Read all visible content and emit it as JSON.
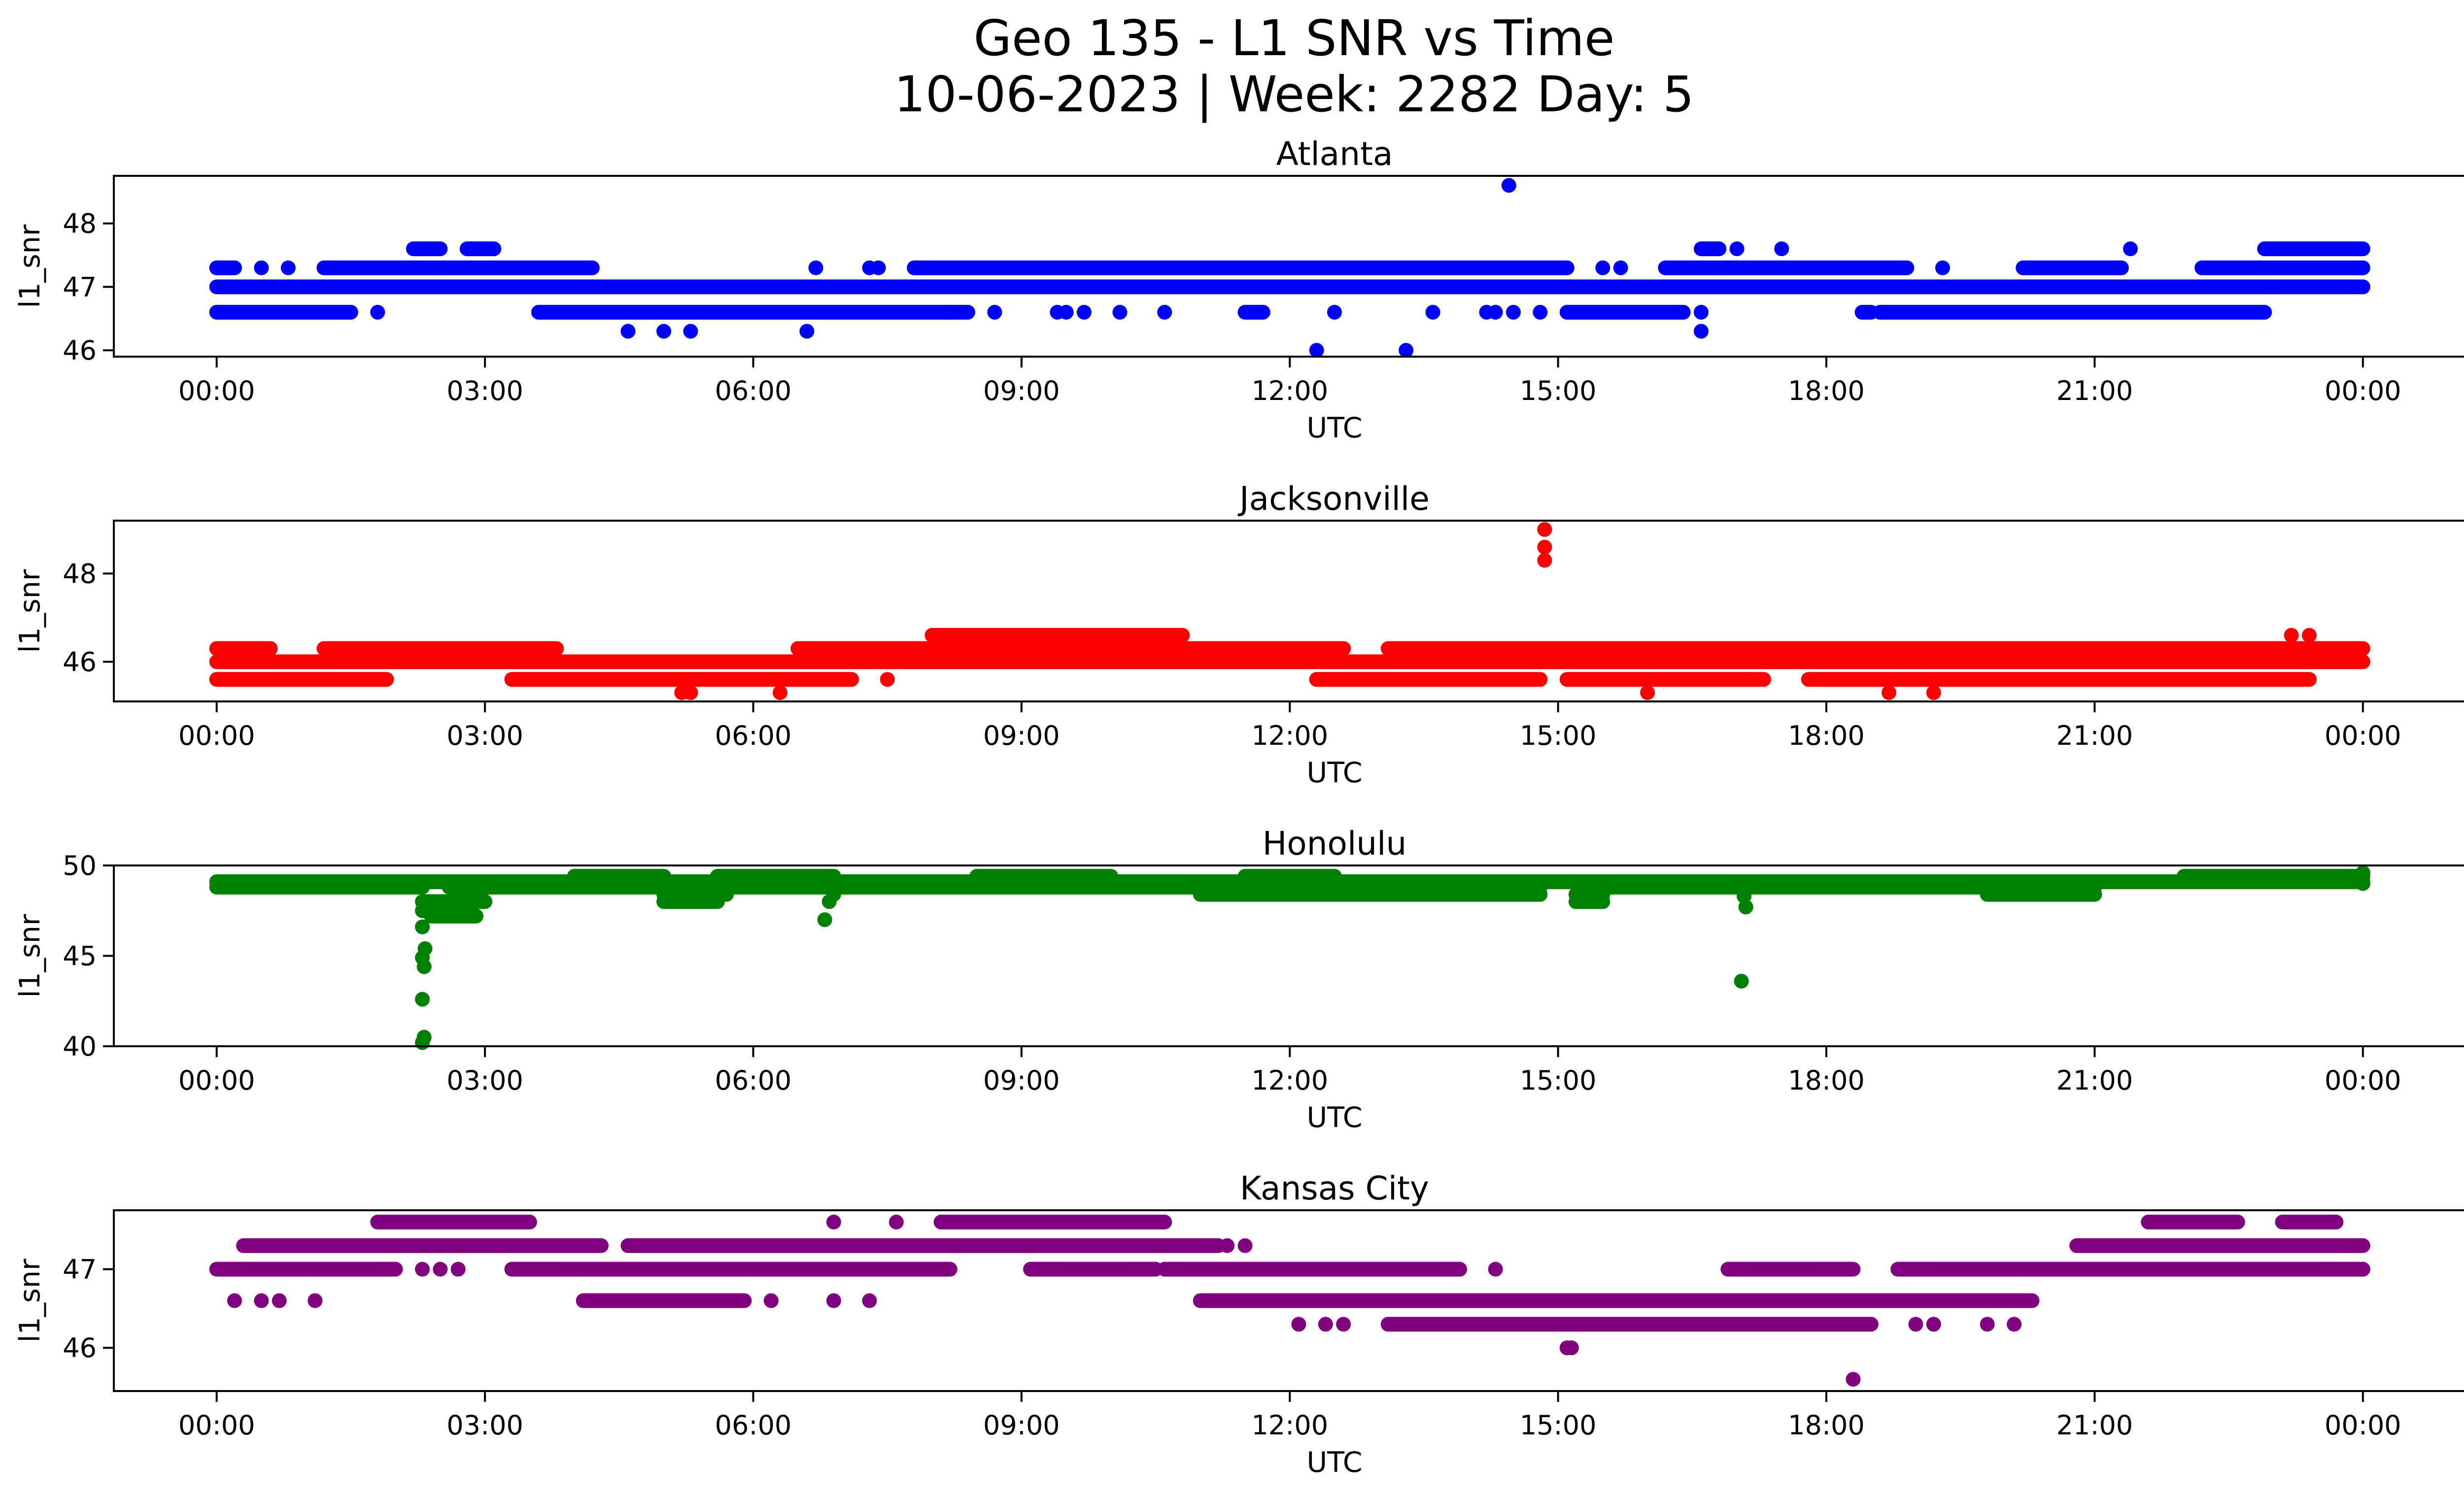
{
  "figure": {
    "title_line1": "Geo 135 - L1 SNR vs Time",
    "title_line2": "10-06-2023 | Week: 2282 Day: 5"
  },
  "chart_data": [
    {
      "type": "scatter",
      "title": "Atlanta",
      "xlabel": "UTC",
      "ylabel": "l1_snr",
      "color": "#0000ff",
      "xlim_hours": [
        -1.15,
        26.15
      ],
      "ylim": [
        45.9,
        48.75
      ],
      "yticks": [
        46,
        47,
        48
      ],
      "xtick_hours": [
        0,
        3,
        6,
        9,
        12,
        15,
        18,
        21,
        24
      ],
      "xtick_labels": [
        "00:00",
        "03:00",
        "06:00",
        "09:00",
        "12:00",
        "15:00",
        "18:00",
        "21:00",
        "00:00"
      ],
      "bands": [
        {
          "y": 47.0,
          "segments": [
            [
              0,
              24
            ]
          ]
        },
        {
          "y": 46.6,
          "segments": [
            [
              0,
              1.5
            ],
            [
              3.6,
              8.2
            ],
            [
              8.2,
              8.4
            ],
            [
              11.5,
              11.7
            ],
            [
              15.1,
              16.4
            ],
            [
              18.4,
              18.5
            ],
            [
              18.6,
              22.9
            ]
          ]
        },
        {
          "y": 47.3,
          "segments": [
            [
              0,
              0.2
            ],
            [
              1.2,
              4.2
            ],
            [
              7.8,
              15.1
            ],
            [
              16.2,
              18.9
            ],
            [
              20.2,
              21.3
            ],
            [
              22.2,
              24
            ]
          ]
        },
        {
          "y": 47.6,
          "segments": [
            [
              2.2,
              2.5
            ],
            [
              2.8,
              3.1
            ],
            [
              16.6,
              16.8
            ],
            [
              22.9,
              24
            ]
          ]
        }
      ],
      "points": [
        {
          "x": 0.5,
          "y": 47.3
        },
        {
          "x": 0.8,
          "y": 47.3
        },
        {
          "x": 1.8,
          "y": 46.6
        },
        {
          "x": 4.6,
          "y": 46.3
        },
        {
          "x": 5.0,
          "y": 46.3
        },
        {
          "x": 5.3,
          "y": 46.3
        },
        {
          "x": 6.6,
          "y": 46.3
        },
        {
          "x": 6.7,
          "y": 47.3
        },
        {
          "x": 7.3,
          "y": 47.3
        },
        {
          "x": 7.4,
          "y": 47.3
        },
        {
          "x": 8.7,
          "y": 46.6
        },
        {
          "x": 9.4,
          "y": 46.6
        },
        {
          "x": 9.5,
          "y": 46.6
        },
        {
          "x": 9.7,
          "y": 46.6
        },
        {
          "x": 10.1,
          "y": 46.6
        },
        {
          "x": 10.6,
          "y": 46.6
        },
        {
          "x": 12.3,
          "y": 46.0
        },
        {
          "x": 12.5,
          "y": 46.6
        },
        {
          "x": 13.3,
          "y": 46.0
        },
        {
          "x": 13.6,
          "y": 46.6
        },
        {
          "x": 14.2,
          "y": 46.6
        },
        {
          "x": 14.3,
          "y": 46.6
        },
        {
          "x": 14.45,
          "y": 48.6
        },
        {
          "x": 14.5,
          "y": 46.6
        },
        {
          "x": 14.8,
          "y": 46.6
        },
        {
          "x": 15.5,
          "y": 47.3
        },
        {
          "x": 15.7,
          "y": 47.3
        },
        {
          "x": 16.6,
          "y": 46.3
        },
        {
          "x": 16.6,
          "y": 46.6
        },
        {
          "x": 17.0,
          "y": 47.6
        },
        {
          "x": 17.5,
          "y": 47.6
        },
        {
          "x": 19.3,
          "y": 47.3
        },
        {
          "x": 21.4,
          "y": 47.6
        },
        {
          "x": 23.0,
          "y": 47.0
        },
        {
          "x": 24.0,
          "y": 47.0
        }
      ]
    },
    {
      "type": "scatter",
      "title": "Jacksonville",
      "xlabel": "UTC",
      "ylabel": "l1_snr",
      "color": "#ff0000",
      "xlim_hours": [
        -1.15,
        26.15
      ],
      "ylim": [
        45.1,
        49.2
      ],
      "yticks": [
        46,
        48
      ],
      "xtick_hours": [
        0,
        3,
        6,
        9,
        12,
        15,
        18,
        21,
        24
      ],
      "xtick_labels": [
        "00:00",
        "03:00",
        "06:00",
        "09:00",
        "12:00",
        "15:00",
        "18:00",
        "21:00",
        "00:00"
      ],
      "bands": [
        {
          "y": 46.0,
          "segments": [
            [
              0,
              24
            ]
          ]
        },
        {
          "y": 45.6,
          "segments": [
            [
              0,
              1.9
            ],
            [
              3.3,
              7.1
            ],
            [
              12.3,
              14.8
            ],
            [
              15.1,
              17.3
            ],
            [
              17.8,
              23.4
            ]
          ]
        },
        {
          "y": 46.3,
          "segments": [
            [
              0,
              0.6
            ],
            [
              1.2,
              3.8
            ],
            [
              6.5,
              12.6
            ],
            [
              13.1,
              24
            ]
          ]
        },
        {
          "y": 46.6,
          "segments": [
            [
              8.0,
              10.8
            ]
          ]
        }
      ],
      "points": [
        {
          "x": 5.2,
          "y": 45.3
        },
        {
          "x": 5.3,
          "y": 45.3
        },
        {
          "x": 6.3,
          "y": 45.3
        },
        {
          "x": 7.5,
          "y": 45.6
        },
        {
          "x": 12.3,
          "y": 45.6
        },
        {
          "x": 14.85,
          "y": 49.0
        },
        {
          "x": 14.85,
          "y": 48.6
        },
        {
          "x": 14.85,
          "y": 48.3
        },
        {
          "x": 16.0,
          "y": 45.3
        },
        {
          "x": 17.1,
          "y": 45.6
        },
        {
          "x": 18.7,
          "y": 45.3
        },
        {
          "x": 19.2,
          "y": 45.3
        },
        {
          "x": 23.2,
          "y": 46.6
        },
        {
          "x": 23.4,
          "y": 46.6
        }
      ]
    },
    {
      "type": "scatter",
      "title": "Honolulu",
      "xlabel": "UTC",
      "ylabel": "l1_snr",
      "color": "#008000",
      "xlim_hours": [
        -1.15,
        26.15
      ],
      "ylim": [
        40.0,
        50.0
      ],
      "yticks": [
        40,
        45,
        50
      ],
      "xtick_hours": [
        0,
        3,
        6,
        9,
        12,
        15,
        18,
        21,
        24
      ],
      "xtick_labels": [
        "00:00",
        "03:00",
        "06:00",
        "09:00",
        "12:00",
        "15:00",
        "18:00",
        "21:00",
        "00:00"
      ],
      "bands": [
        {
          "y": 49.1,
          "segments": [
            [
              0,
              24
            ]
          ]
        },
        {
          "y": 48.8,
          "segments": [
            [
              0,
              2.3
            ],
            [
              2.6,
              5.2
            ],
            [
              5.8,
              11.0
            ],
            [
              11.0,
              14.8
            ],
            [
              15.3,
              19.8
            ],
            [
              20.0,
              21.0
            ]
          ]
        },
        {
          "y": 49.4,
          "segments": [
            [
              4.0,
              5.0
            ],
            [
              5.6,
              6.9
            ],
            [
              8.5,
              10.0
            ],
            [
              11.5,
              12.5
            ],
            [
              22.0,
              24
            ]
          ]
        },
        {
          "y": 48.4,
          "segments": [
            [
              5.0,
              5.7
            ],
            [
              11.0,
              14.8
            ],
            [
              15.2,
              15.5
            ],
            [
              19.8,
              21.0
            ]
          ]
        },
        {
          "y": 48.0,
          "segments": [
            [
              2.3,
              3.0
            ],
            [
              5.0,
              5.6
            ],
            [
              15.2,
              15.5
            ]
          ]
        },
        {
          "y": 47.5,
          "segments": [
            [
              2.3,
              2.7
            ]
          ]
        },
        {
          "y": 47.2,
          "segments": [
            [
              2.4,
              2.9
            ]
          ]
        }
      ],
      "points": [
        {
          "x": 2.3,
          "y": 40.2
        },
        {
          "x": 2.32,
          "y": 40.5
        },
        {
          "x": 2.3,
          "y": 42.6
        },
        {
          "x": 2.32,
          "y": 44.4
        },
        {
          "x": 2.3,
          "y": 44.9
        },
        {
          "x": 2.33,
          "y": 45.4
        },
        {
          "x": 2.3,
          "y": 46.6
        },
        {
          "x": 2.35,
          "y": 47.9
        },
        {
          "x": 2.6,
          "y": 48.9
        },
        {
          "x": 6.8,
          "y": 47.0
        },
        {
          "x": 6.85,
          "y": 48.0
        },
        {
          "x": 6.9,
          "y": 48.4
        },
        {
          "x": 17.05,
          "y": 43.6
        },
        {
          "x": 17.1,
          "y": 47.7
        },
        {
          "x": 17.08,
          "y": 48.3
        },
        {
          "x": 17.0,
          "y": 48.9
        },
        {
          "x": 24.0,
          "y": 49.6
        },
        {
          "x": 24.0,
          "y": 49.0
        }
      ]
    },
    {
      "type": "scatter",
      "title": "Kansas City",
      "xlabel": "UTC",
      "ylabel": "l1_snr",
      "color": "#800080",
      "xlim_hours": [
        -1.15,
        26.15
      ],
      "ylim": [
        45.45,
        47.75
      ],
      "yticks": [
        46,
        47
      ],
      "xtick_hours": [
        0,
        3,
        6,
        9,
        12,
        15,
        18,
        21,
        24
      ],
      "xtick_labels": [
        "00:00",
        "03:00",
        "06:00",
        "09:00",
        "12:00",
        "15:00",
        "18:00",
        "21:00",
        "00:00"
      ],
      "bands": [
        {
          "y": 47.0,
          "segments": [
            [
              0,
              2.0
            ],
            [
              3.3,
              8.2
            ],
            [
              9.1,
              10.5
            ],
            [
              10.6,
              13.9
            ],
            [
              16.9,
              18.3
            ],
            [
              18.8,
              24
            ]
          ]
        },
        {
          "y": 47.3,
          "segments": [
            [
              0.3,
              4.3
            ],
            [
              4.6,
              11.2
            ],
            [
              20.8,
              24
            ]
          ]
        },
        {
          "y": 46.6,
          "segments": [
            [
              4.1,
              5.9
            ],
            [
              11.0,
              20.3
            ]
          ]
        },
        {
          "y": 47.6,
          "segments": [
            [
              1.8,
              3.5
            ],
            [
              8.1,
              10.6
            ],
            [
              21.6,
              22.6
            ],
            [
              23.1,
              23.7
            ]
          ]
        },
        {
          "y": 46.3,
          "segments": [
            [
              13.1,
              18.5
            ]
          ]
        }
      ],
      "points": [
        {
          "x": 0.2,
          "y": 46.6
        },
        {
          "x": 0.5,
          "y": 46.6
        },
        {
          "x": 0.7,
          "y": 46.6
        },
        {
          "x": 1.1,
          "y": 46.6
        },
        {
          "x": 2.3,
          "y": 47.0
        },
        {
          "x": 2.5,
          "y": 47.0
        },
        {
          "x": 2.7,
          "y": 47.0
        },
        {
          "x": 6.2,
          "y": 46.6
        },
        {
          "x": 6.9,
          "y": 47.6
        },
        {
          "x": 6.9,
          "y": 46.6
        },
        {
          "x": 7.3,
          "y": 46.6
        },
        {
          "x": 7.6,
          "y": 47.6
        },
        {
          "x": 11.3,
          "y": 47.3
        },
        {
          "x": 11.5,
          "y": 47.3
        },
        {
          "x": 12.1,
          "y": 46.3
        },
        {
          "x": 12.4,
          "y": 46.3
        },
        {
          "x": 12.6,
          "y": 46.3
        },
        {
          "x": 14.3,
          "y": 47.0
        },
        {
          "x": 15.1,
          "y": 46.0
        },
        {
          "x": 15.15,
          "y": 46.0
        },
        {
          "x": 18.3,
          "y": 45.6
        },
        {
          "x": 19.0,
          "y": 46.3
        },
        {
          "x": 19.2,
          "y": 46.3
        },
        {
          "x": 19.8,
          "y": 46.3
        },
        {
          "x": 20.1,
          "y": 46.3
        },
        {
          "x": 23.8,
          "y": 47.3
        },
        {
          "x": 24.0,
          "y": 47.0
        }
      ]
    }
  ]
}
